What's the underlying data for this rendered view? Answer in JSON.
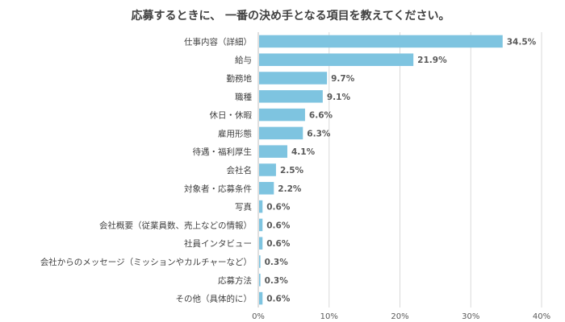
{
  "chart_data": {
    "type": "bar",
    "orientation": "horizontal",
    "title": "応募するときに、 一番の決め手となる項目を教えてください。",
    "categories": [
      "仕事内容（詳細）",
      "給与",
      "勤務地",
      "職種",
      "休日・休暇",
      "雇用形態",
      "待遇・福利厚生",
      "会社名",
      "対象者・応募条件",
      "写真",
      "会社概要（従業員数、売上などの情報）",
      "社員インタビュー",
      "会社からのメッセージ（ミッションやカルチャーなど）",
      "応募方法",
      "その他（具体的に）"
    ],
    "values": [
      34.5,
      21.9,
      9.7,
      9.1,
      6.6,
      6.3,
      4.1,
      2.5,
      2.2,
      0.6,
      0.6,
      0.6,
      0.3,
      0.3,
      0.6
    ],
    "value_labels": [
      "34.5%",
      "21.9%",
      "9.7%",
      "9.1%",
      "6.6%",
      "6.3%",
      "4.1%",
      "2.5%",
      "2.2%",
      "0.6%",
      "0.6%",
      "0.6%",
      "0.3%",
      "0.3%",
      "0.6%"
    ],
    "xlim": [
      0,
      40
    ],
    "x_ticks": [
      0,
      10,
      20,
      30,
      40
    ],
    "x_tick_labels": [
      "0%",
      "10%",
      "20%",
      "30%",
      "40%"
    ],
    "bar_color": "#7ec4e0",
    "grid": true,
    "legend": "none"
  }
}
